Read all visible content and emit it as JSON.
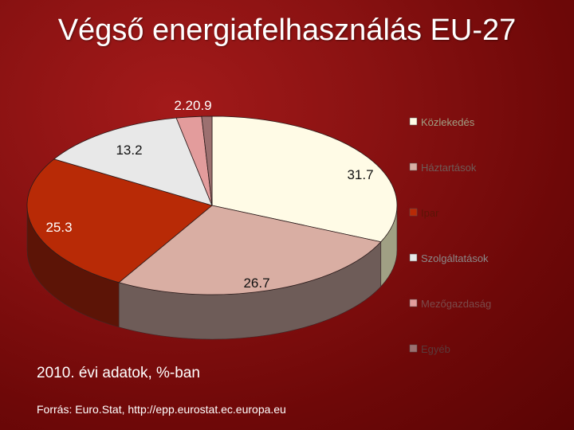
{
  "slide": {
    "title": "Végső energiafelhasználás EU-27",
    "note": "2010. évi adatok, %-ban",
    "source": "Forrás: Euro.Stat, http://epp.eurostat.ec.europa.eu"
  },
  "chart_data": {
    "type": "pie",
    "title": "",
    "legend_position": "right",
    "slices": [
      {
        "name": "Közlekedés",
        "value": 31.7,
        "label": "31.7",
        "color": "#fffbe6",
        "side": "#a0a084"
      },
      {
        "name": "Háztartások",
        "value": 26.7,
        "label": "26.7",
        "color": "#d9aea3",
        "side": "#6e5c58"
      },
      {
        "name": "Ipar",
        "value": 25.3,
        "label": "25.3",
        "color": "#b82a06",
        "side": "#5c1406"
      },
      {
        "name": "Szolgáltatások",
        "value": 13.2,
        "label": "13.2",
        "color": "#e8e8e8",
        "side": "#8a8a8a"
      },
      {
        "name": "Mezőgazdaság",
        "value": 2.2,
        "label": "2.2",
        "color": "#e39c9c",
        "side": "#7a4a4a"
      },
      {
        "name": "Egyéb",
        "value": 0.9,
        "label": "0.9",
        "color": "#9c7070",
        "side": "#5a3a3a"
      }
    ],
    "small_label": "2.20.9"
  }
}
